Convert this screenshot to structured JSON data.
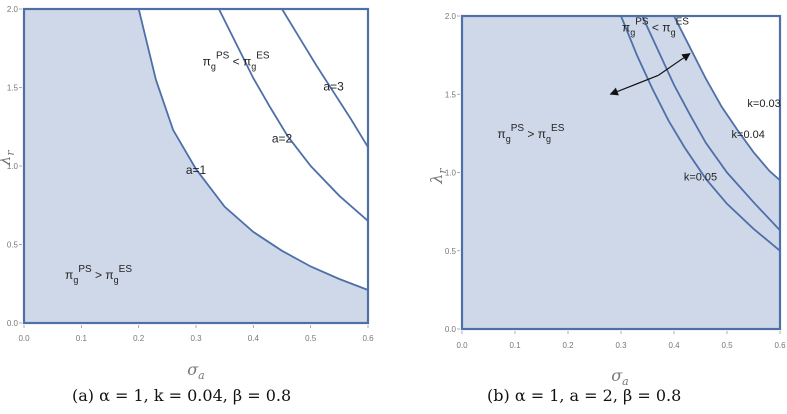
{
  "chart_data": [
    {
      "type": "area",
      "panel": "(a)",
      "xlabel": "σa",
      "ylabel": "λr",
      "xlim": [
        0.0,
        0.6
      ],
      "ylim": [
        0.0,
        2.0
      ],
      "xticks": [
        "0.0",
        "0.1",
        "0.2",
        "0.3",
        "0.4",
        "0.5",
        "0.6"
      ],
      "yticks": [
        "0.0",
        "0.5",
        "1.0",
        "1.5",
        "2.0"
      ],
      "shaded_region": "below a=1 curve",
      "fill_color": "#cfd8e8",
      "line_color": "#4e6fa8",
      "series": [
        {
          "name": "a=1",
          "x": [
            0.2,
            0.23,
            0.26,
            0.3,
            0.35,
            0.4,
            0.45,
            0.5,
            0.55,
            0.6
          ],
          "y": [
            2.0,
            1.55,
            1.23,
            0.98,
            0.74,
            0.58,
            0.46,
            0.36,
            0.28,
            0.21
          ]
        },
        {
          "name": "a=2",
          "x": [
            0.34,
            0.37,
            0.4,
            0.43,
            0.46,
            0.5,
            0.55,
            0.6
          ],
          "y": [
            2.0,
            1.78,
            1.56,
            1.37,
            1.19,
            1.0,
            0.81,
            0.65
          ]
        },
        {
          "name": "a=3",
          "x": [
            0.45,
            0.48,
            0.51,
            0.54,
            0.57,
            0.6
          ],
          "y": [
            2.0,
            1.82,
            1.64,
            1.47,
            1.3,
            1.12
          ]
        }
      ],
      "annotations": [
        {
          "base": "π",
          "sub": "g",
          "sup": "PS",
          "op": " < ",
          "base2": "π",
          "sub2": "g",
          "sup2": "ES",
          "x": 0.37,
          "y": 1.64
        },
        {
          "base": "π",
          "sub": "g",
          "sup": "PS",
          "op": " > ",
          "base2": "π",
          "sub2": "g",
          "sup2": "ES",
          "x": 0.13,
          "y": 0.28
        }
      ],
      "caption": "(a)  α = 1, k = 0.04, β = 0.8"
    },
    {
      "type": "area",
      "panel": "(b)",
      "xlabel": "σa",
      "ylabel": "λr",
      "xlim": [
        0.0,
        0.6
      ],
      "ylim": [
        0.0,
        2.0
      ],
      "xticks": [
        "0.0",
        "0.1",
        "0.2",
        "0.3",
        "0.4",
        "0.5",
        "0.6"
      ],
      "yticks": [
        "0.0",
        "0.5",
        "1.0",
        "1.5",
        "2.0"
      ],
      "shaded_region": "below k=0.03 curve",
      "fill_color": "#cfd8e8",
      "line_color": "#4e6fa8",
      "series": [
        {
          "name": "k=0.03",
          "x": [
            0.4,
            0.43,
            0.46,
            0.49,
            0.52,
            0.55,
            0.58,
            0.6
          ],
          "y": [
            2.0,
            1.8,
            1.6,
            1.42,
            1.27,
            1.13,
            1.01,
            0.95
          ]
        },
        {
          "name": "k=0.04",
          "x": [
            0.34,
            0.37,
            0.4,
            0.43,
            0.46,
            0.5,
            0.55,
            0.6
          ],
          "y": [
            2.0,
            1.78,
            1.56,
            1.37,
            1.19,
            1.0,
            0.81,
            0.63
          ]
        },
        {
          "name": "k=0.05",
          "x": [
            0.3,
            0.33,
            0.36,
            0.39,
            0.42,
            0.46,
            0.5,
            0.55,
            0.6
          ],
          "y": [
            2.0,
            1.75,
            1.53,
            1.33,
            1.16,
            0.96,
            0.8,
            0.64,
            0.5
          ]
        }
      ],
      "annotations": [
        {
          "base": "π",
          "sub": "g",
          "sup": "PS",
          "op": " < ",
          "base2": "π",
          "sub2": "g",
          "sup2": "ES",
          "x": 0.365,
          "y": 1.9
        },
        {
          "base": "π",
          "sub": "g",
          "sup": "PS",
          "op": " > ",
          "base2": "π",
          "sub2": "g",
          "sup2": "ES",
          "x": 0.13,
          "y": 1.22
        }
      ],
      "arrow": {
        "from": [
          0.37,
          1.62
        ],
        "to": [
          0.43,
          1.76
        ],
        "from2": [
          0.37,
          1.62
        ],
        "to2": [
          0.28,
          1.5
        ]
      },
      "caption": "(b)  α = 1, a = 2, β = 0.8"
    }
  ]
}
